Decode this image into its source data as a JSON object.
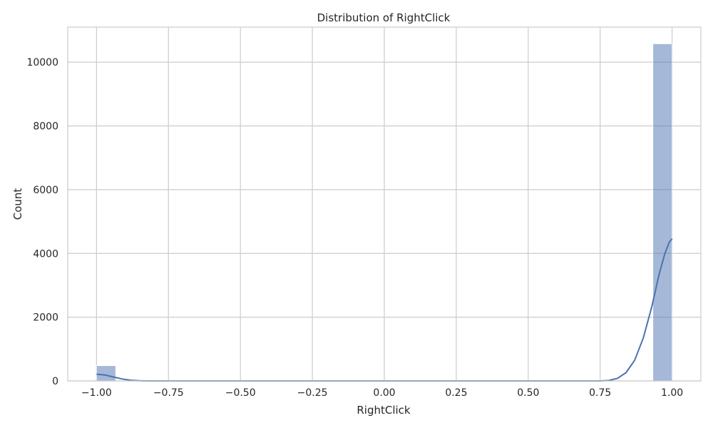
{
  "chart_data": {
    "type": "bar",
    "title": "Distribution of RightClick",
    "xlabel": "RightClick",
    "ylabel": "Count",
    "xlim": [
      -1.1,
      1.1
    ],
    "ylim": [
      0,
      11100
    ],
    "grid": true,
    "bar_color": "#4c72b0",
    "bar_opacity": 0.5,
    "kde_color": "#4c72b0",
    "grid_color": "#cccccc",
    "x_ticks": [
      -1.0,
      -0.75,
      -0.5,
      -0.25,
      0.0,
      0.25,
      0.5,
      0.75,
      1.0
    ],
    "x_tick_labels": [
      "−1.00",
      "−0.75",
      "−0.50",
      "−0.25",
      "0.00",
      "0.25",
      "0.50",
      "0.75",
      "1.00"
    ],
    "y_ticks": [
      0,
      2000,
      4000,
      6000,
      8000,
      10000
    ],
    "y_tick_labels": [
      "0",
      "2000",
      "4000",
      "6000",
      "8000",
      "10000"
    ],
    "bins": [
      {
        "x0": -1.0,
        "x1": -0.9333,
        "count": 478
      },
      {
        "x0": 0.9333,
        "x1": 1.0,
        "count": 10577
      }
    ],
    "kde": [
      {
        "x": -1.0,
        "y": 210
      },
      {
        "x": -0.97,
        "y": 185
      },
      {
        "x": -0.94,
        "y": 120
      },
      {
        "x": -0.91,
        "y": 60
      },
      {
        "x": -0.88,
        "y": 20
      },
      {
        "x": -0.85,
        "y": 5
      },
      {
        "x": -0.82,
        "y": 1
      },
      {
        "x": -0.78,
        "y": 0
      },
      {
        "x": 0.75,
        "y": 0
      },
      {
        "x": 0.78,
        "y": 15
      },
      {
        "x": 0.81,
        "y": 80
      },
      {
        "x": 0.84,
        "y": 260
      },
      {
        "x": 0.87,
        "y": 650
      },
      {
        "x": 0.9,
        "y": 1350
      },
      {
        "x": 0.93,
        "y": 2350
      },
      {
        "x": 0.955,
        "y": 3350
      },
      {
        "x": 0.975,
        "y": 4000
      },
      {
        "x": 0.99,
        "y": 4350
      },
      {
        "x": 1.0,
        "y": 4460
      }
    ]
  }
}
